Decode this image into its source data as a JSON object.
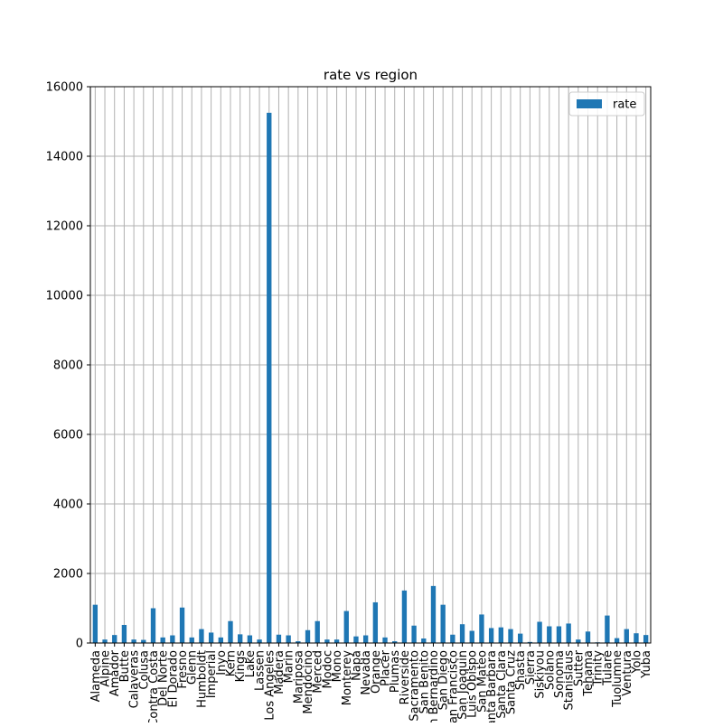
{
  "chart_data": {
    "type": "bar",
    "title": "rate vs region",
    "xlabel": "",
    "ylabel": "",
    "ylim": [
      0,
      16000
    ],
    "yticks": [
      0,
      2000,
      4000,
      6000,
      8000,
      10000,
      12000,
      14000,
      16000
    ],
    "grid": true,
    "legend_position": "top-right",
    "categories": [
      "Alameda",
      "Alpine",
      "Amador",
      "Butte",
      "Calaveras",
      "Colusa",
      "Contra Costa",
      "Del Norte",
      "El Dorado",
      "Fresno",
      "Glenn",
      "Humboldt",
      "Imperial",
      "Inyo",
      "Kern",
      "Kings",
      "Lake",
      "Lassen",
      "Los Angeles",
      "Madera",
      "Marin",
      "Mariposa",
      "Mendocino",
      "Merced",
      "Modoc",
      "Mono",
      "Monterey",
      "Napa",
      "Nevada",
      "Orange",
      "Placer",
      "Plumas",
      "Riverside",
      "Sacramento",
      "San Benito",
      "San Bernardino",
      "San Diego",
      "San Francisco",
      "San Joaquin",
      "San Luis Obispo",
      "San Mateo",
      "Santa Barbara",
      "Santa Clara",
      "Santa Cruz",
      "Shasta",
      "Sierra",
      "Siskiyou",
      "Solano",
      "Sonoma",
      "Stanislaus",
      "Sutter",
      "Tehama",
      "Trinity",
      "Tulare",
      "Tuolumne",
      "Ventura",
      "Yolo",
      "Yuba"
    ],
    "series": [
      {
        "name": "rate",
        "color": "#1f77b4",
        "values": [
          1100,
          100,
          230,
          520,
          100,
          90,
          1000,
          160,
          220,
          1020,
          160,
          400,
          300,
          160,
          630,
          250,
          220,
          100,
          15250,
          240,
          220,
          50,
          370,
          630,
          100,
          100,
          920,
          190,
          220,
          1170,
          160,
          50,
          1510,
          500,
          130,
          1640,
          1100,
          240,
          540,
          350,
          820,
          430,
          450,
          400,
          270,
          30,
          610,
          480,
          480,
          560,
          100,
          330,
          20,
          790,
          140,
          400,
          280,
          230
        ]
      }
    ]
  }
}
